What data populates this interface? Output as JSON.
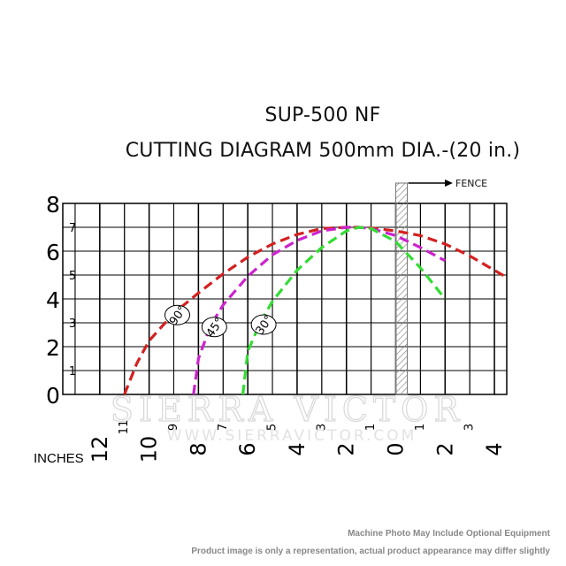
{
  "title": "SUP-500 NF",
  "subtitle": "CUTTING DIAGRAM 500mm DIA.-(20 in.)",
  "watermark": {
    "brand": "SIERRA VICTOR",
    "url": "WWW.SIERRAVICTOR.COM"
  },
  "footer": {
    "line1": "Machine Photo May Include Optional Equipment",
    "line2": "Product image is only a representation, actual product appearance may differ slightly"
  },
  "chart_data": {
    "type": "line",
    "title": "SUP-500 NF",
    "subtitle": "CUTTING DIAGRAM 500mm DIA.-(20 in.)",
    "xlabel": "INCHES",
    "fence_label": "FENCE",
    "x_reversed": true,
    "xlim": [
      -4.5,
      13.5
    ],
    "ylim": [
      0,
      8
    ],
    "y_major_ticks": [
      "0",
      "2",
      "4",
      "6",
      "8"
    ],
    "y_minor_ticks": [
      "1",
      "3",
      "5",
      "7"
    ],
    "x_major_ticks": [
      "12",
      "10",
      "8",
      "6",
      "4",
      "2",
      "0",
      "2",
      "4"
    ],
    "x_major_values": [
      12,
      10,
      8,
      6,
      4,
      2,
      0,
      -2,
      -4
    ],
    "x_minor_ticks": [
      "11",
      "9",
      "7",
      "5",
      "3",
      "1",
      "1",
      "3"
    ],
    "x_minor_values": [
      11,
      9,
      7,
      5,
      3,
      1,
      -1,
      -3
    ],
    "fence_x": 0,
    "grid": true,
    "series": [
      {
        "name": "90°",
        "color": "#d42020",
        "x": [
          11,
          10.5,
          10,
          9,
          8,
          7,
          6,
          5,
          4,
          3,
          2,
          1.5,
          1,
          0,
          -1,
          -2,
          -3,
          -4,
          -4.5
        ],
        "y": [
          0,
          1.3,
          2.25,
          3.4,
          4.25,
          5.05,
          5.75,
          6.3,
          6.7,
          6.95,
          7.0,
          7.0,
          6.97,
          6.85,
          6.65,
          6.3,
          5.8,
          5.2,
          4.9
        ]
      },
      {
        "name": "45°",
        "color": "#cc22cc",
        "x": [
          8.2,
          8,
          7.5,
          7,
          6,
          5,
          4,
          3,
          2,
          1.5,
          1,
          0,
          -1,
          -2
        ],
        "y": [
          0,
          1.5,
          2.9,
          3.75,
          4.95,
          5.85,
          6.45,
          6.85,
          7.0,
          7.0,
          6.95,
          6.65,
          6.15,
          5.6
        ]
      },
      {
        "name": "30°",
        "color": "#33dd33",
        "x": [
          6.2,
          6,
          5.5,
          5,
          4,
          3,
          2,
          1.5,
          1,
          0,
          -1,
          -2
        ],
        "y": [
          0,
          1.8,
          3.0,
          3.9,
          5.2,
          6.15,
          6.85,
          7.0,
          6.95,
          6.4,
          5.3,
          4.0
        ]
      }
    ]
  }
}
